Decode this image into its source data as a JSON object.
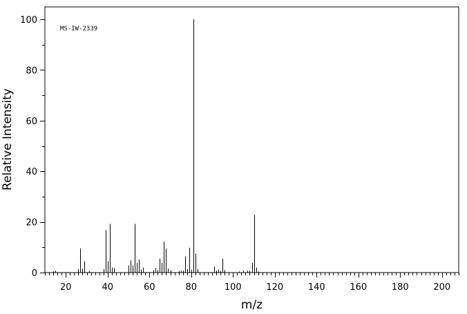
{
  "chart_data": {
    "type": "bar",
    "title": "",
    "annotation": "MS-IW-2339",
    "xlabel": "m/z",
    "ylabel": "Relative Intensity",
    "xlim": [
      10,
      208
    ],
    "ylim": [
      0,
      100
    ],
    "x_major_ticks": [
      20,
      40,
      60,
      80,
      100,
      120,
      140,
      160,
      180,
      200
    ],
    "y_major_ticks": [
      0,
      20,
      40,
      60,
      80,
      100
    ],
    "x_minor_step": 2,
    "y_minor_step": 10,
    "grid": false,
    "legend": "none",
    "series": [
      {
        "points": [
          [
            14,
            0.5
          ],
          [
            15,
            0.7
          ],
          [
            26,
            1.4
          ],
          [
            27,
            9.5
          ],
          [
            28,
            1.5
          ],
          [
            29,
            4.5
          ],
          [
            31,
            0.6
          ],
          [
            38,
            1.4
          ],
          [
            39,
            16.8
          ],
          [
            40,
            4.5
          ],
          [
            41,
            19.2
          ],
          [
            42,
            2.0
          ],
          [
            43,
            1.8
          ],
          [
            50,
            2.8
          ],
          [
            51,
            4.8
          ],
          [
            52,
            2.8
          ],
          [
            53,
            19.2
          ],
          [
            54,
            3.8
          ],
          [
            55,
            5.2
          ],
          [
            56,
            1.2
          ],
          [
            57,
            2.0
          ],
          [
            62,
            1.0
          ],
          [
            63,
            1.8
          ],
          [
            64,
            1.0
          ],
          [
            65,
            5.5
          ],
          [
            66,
            3.8
          ],
          [
            67,
            12.2
          ],
          [
            68,
            9.5
          ],
          [
            69,
            1.6
          ],
          [
            70,
            1.0
          ],
          [
            74,
            0.6
          ],
          [
            75,
            0.8
          ],
          [
            76,
            0.8
          ],
          [
            77,
            6.4
          ],
          [
            78,
            1.4
          ],
          [
            79,
            9.8
          ],
          [
            80,
            1.2
          ],
          [
            81,
            100
          ],
          [
            82,
            7.5
          ],
          [
            83,
            1.4
          ],
          [
            91,
            2.4
          ],
          [
            92,
            0.8
          ],
          [
            93,
            1.2
          ],
          [
            94,
            0.6
          ],
          [
            95,
            5.5
          ],
          [
            96,
            1.0
          ],
          [
            103,
            0.4
          ],
          [
            105,
            0.8
          ],
          [
            107,
            0.8
          ],
          [
            108,
            0.8
          ],
          [
            109,
            3.8
          ],
          [
            110,
            22.8
          ],
          [
            111,
            2.0
          ],
          [
            112,
            0.4
          ]
        ]
      }
    ]
  }
}
